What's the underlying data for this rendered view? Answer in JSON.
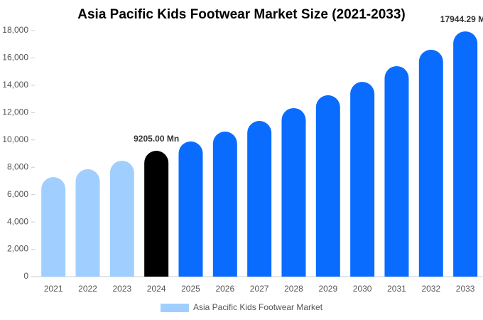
{
  "chart_data": {
    "type": "bar",
    "title": "Asia Pacific Kids Footwear Market Size (2021-2033)",
    "categories": [
      "2021",
      "2022",
      "2023",
      "2024",
      "2025",
      "2026",
      "2027",
      "2028",
      "2029",
      "2030",
      "2031",
      "2032",
      "2033"
    ],
    "series": [
      {
        "name": "Asia Pacific Kids Footwear Market",
        "color": "#a0cfff",
        "values": [
          7280,
          7860,
          8480,
          9205,
          9890,
          10610,
          11390,
          12330,
          13270,
          14250,
          15400,
          16600,
          17944.29
        ],
        "value_labels": [
          null,
          null,
          null,
          "9205.00 Mn",
          null,
          null,
          null,
          null,
          null,
          null,
          null,
          null,
          "17944.29 Mn"
        ]
      }
    ],
    "colors": [
      "#a0cfff",
      "#a0cfff",
      "#a0cfff",
      "#000000",
      "#0a6cff",
      "#0a6cff",
      "#0a6cff",
      "#0a6cff",
      "#0a6cff",
      "#0a6cff",
      "#0a6cff",
      "#0a6cff",
      "#0a6cff"
    ],
    "ylim": [
      0,
      18000
    ],
    "yticks": [
      0,
      {
        "value": 2000,
        "label": "2,000"
      },
      {
        "value": 4000,
        "label": "4,000"
      },
      {
        "value": 6000,
        "label": "6,000"
      },
      {
        "value": 8000,
        "label": "8,000"
      },
      {
        "value": 10000,
        "label": "10,000"
      },
      {
        "value": 12000,
        "label": "12,000"
      },
      {
        "value": 14000,
        "label": "14,000"
      },
      {
        "value": 16000,
        "label": "16,000"
      },
      {
        "value": 18000,
        "label": "18,000"
      }
    ],
    "grid": false
  }
}
